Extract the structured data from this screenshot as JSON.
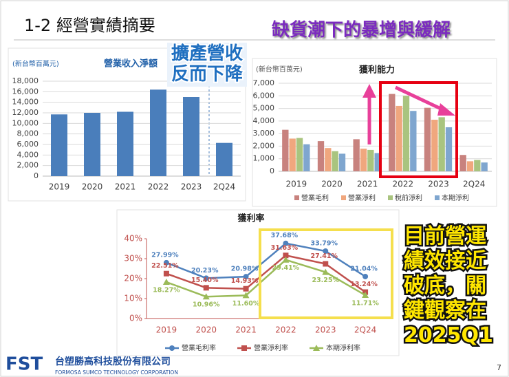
{
  "slide": {
    "title": "1-2  經營實績摘要",
    "page": "7"
  },
  "callouts": [
    {
      "lines": [
        "擴產營收",
        "反而下降"
      ]
    },
    {
      "lines": [
        "缺貨潮下的暴增與緩解"
      ]
    },
    {
      "lines": [
        "目前營運",
        "績效接近",
        "破底，關",
        "鍵觀察在",
        "2025Q1"
      ]
    }
  ],
  "footer": {
    "logo": "FST",
    "company": "台塑勝高科技股份有限公司",
    "company_en": "FORMOSA SUMCO TECHNOLOGY CORPORATION"
  },
  "chart_data": [
    {
      "type": "bar",
      "title": "營業收入淨額",
      "y_label": "(新台幣百萬元)",
      "categories": [
        "2019",
        "2020",
        "2021",
        "2022",
        "2023",
        "2Q24"
      ],
      "values": [
        11700,
        12000,
        12200,
        16400,
        15000,
        6300
      ],
      "color": "#4a7ebb",
      "ylim": [
        0,
        18000
      ],
      "yticks": [
        0,
        {
          "value": 2000,
          "label": "2,000"
        },
        {
          "value": 4000,
          "label": "4,000"
        },
        {
          "value": 6000,
          "label": "6,000"
        },
        {
          "value": 8000,
          "label": "8,000"
        },
        {
          "value": 10000,
          "label": "10,000"
        },
        {
          "value": 12000,
          "label": "12,000"
        },
        {
          "value": 14000,
          "label": "14,000"
        },
        {
          "value": 16000,
          "label": "16,000"
        },
        {
          "value": 18000,
          "label": "18,000"
        }
      ],
      "grid": true
    },
    {
      "type": "bar",
      "title": "獲利能力",
      "y_label": "(新台幣百萬元)",
      "categories": [
        "2019",
        "2020",
        "2021",
        "2022",
        "2023",
        "2Q24"
      ],
      "series": [
        {
          "name": "營業毛利",
          "color": "#c8827e",
          "values": [
            3300,
            2400,
            2550,
            6150,
            5050,
            1300
          ]
        },
        {
          "name": "營業淨利",
          "color": "#f0a77e",
          "values": [
            2600,
            1850,
            1800,
            5200,
            4100,
            800
          ]
        },
        {
          "name": "稅前淨利",
          "color": "#a9c47f",
          "values": [
            2650,
            1600,
            1700,
            6000,
            4300,
            900
          ]
        },
        {
          "name": "本期淨利",
          "color": "#7fa6cf",
          "values": [
            2150,
            1400,
            1450,
            4800,
            3500,
            700
          ]
        }
      ],
      "ylim": [
        0,
        7000
      ],
      "yticks": [
        0,
        {
          "value": 1000,
          "label": "1,000"
        },
        {
          "value": 2000,
          "label": "2,000"
        },
        {
          "value": 3000,
          "label": "3,000"
        },
        {
          "value": 4000,
          "label": "4,000"
        },
        {
          "value": 5000,
          "label": "5,000"
        },
        {
          "value": 6000,
          "label": "6,000"
        },
        {
          "value": 7000,
          "label": "7,000"
        }
      ],
      "grid": true
    },
    {
      "type": "line",
      "title": "獲利率",
      "categories": [
        "2019",
        "2020",
        "2021",
        "2022",
        "2023",
        "2Q24"
      ],
      "series": [
        {
          "name": "營業毛利率",
          "color": "#4f81bd",
          "values": [
            27.99,
            20.23,
            20.98,
            37.68,
            33.79,
            21.04
          ],
          "value_labels": [
            "27.99%",
            "20.23%",
            "20.98%",
            "37.68%",
            "33.79%",
            "21.04%"
          ]
        },
        {
          "name": "營業淨利率",
          "color": "#c0504d",
          "values": [
            22.51,
            15.4,
            14.93,
            31.63,
            27.41,
            13.24
          ],
          "value_labels": [
            "22.51%",
            "15.40%",
            "14.93%",
            "31.63%",
            "27.41%",
            "13.24%"
          ]
        },
        {
          "name": "本期淨利率",
          "color": "#9bbb59",
          "values": [
            18.27,
            10.96,
            11.6,
            29.41,
            23.25,
            11.71
          ],
          "value_labels": [
            "18.27%",
            "10.96%",
            "11.60%",
            "29.41%",
            "23.25%",
            "11.71%"
          ]
        }
      ],
      "ylim": [
        0,
        40
      ],
      "yticks": [
        {
          "value": 0,
          "label": "0%"
        },
        {
          "value": 10,
          "label": "10%"
        },
        {
          "value": 20,
          "label": "20%"
        },
        {
          "value": 30,
          "label": "30%"
        },
        {
          "value": 40,
          "label": "40%"
        }
      ],
      "grid": false
    }
  ]
}
